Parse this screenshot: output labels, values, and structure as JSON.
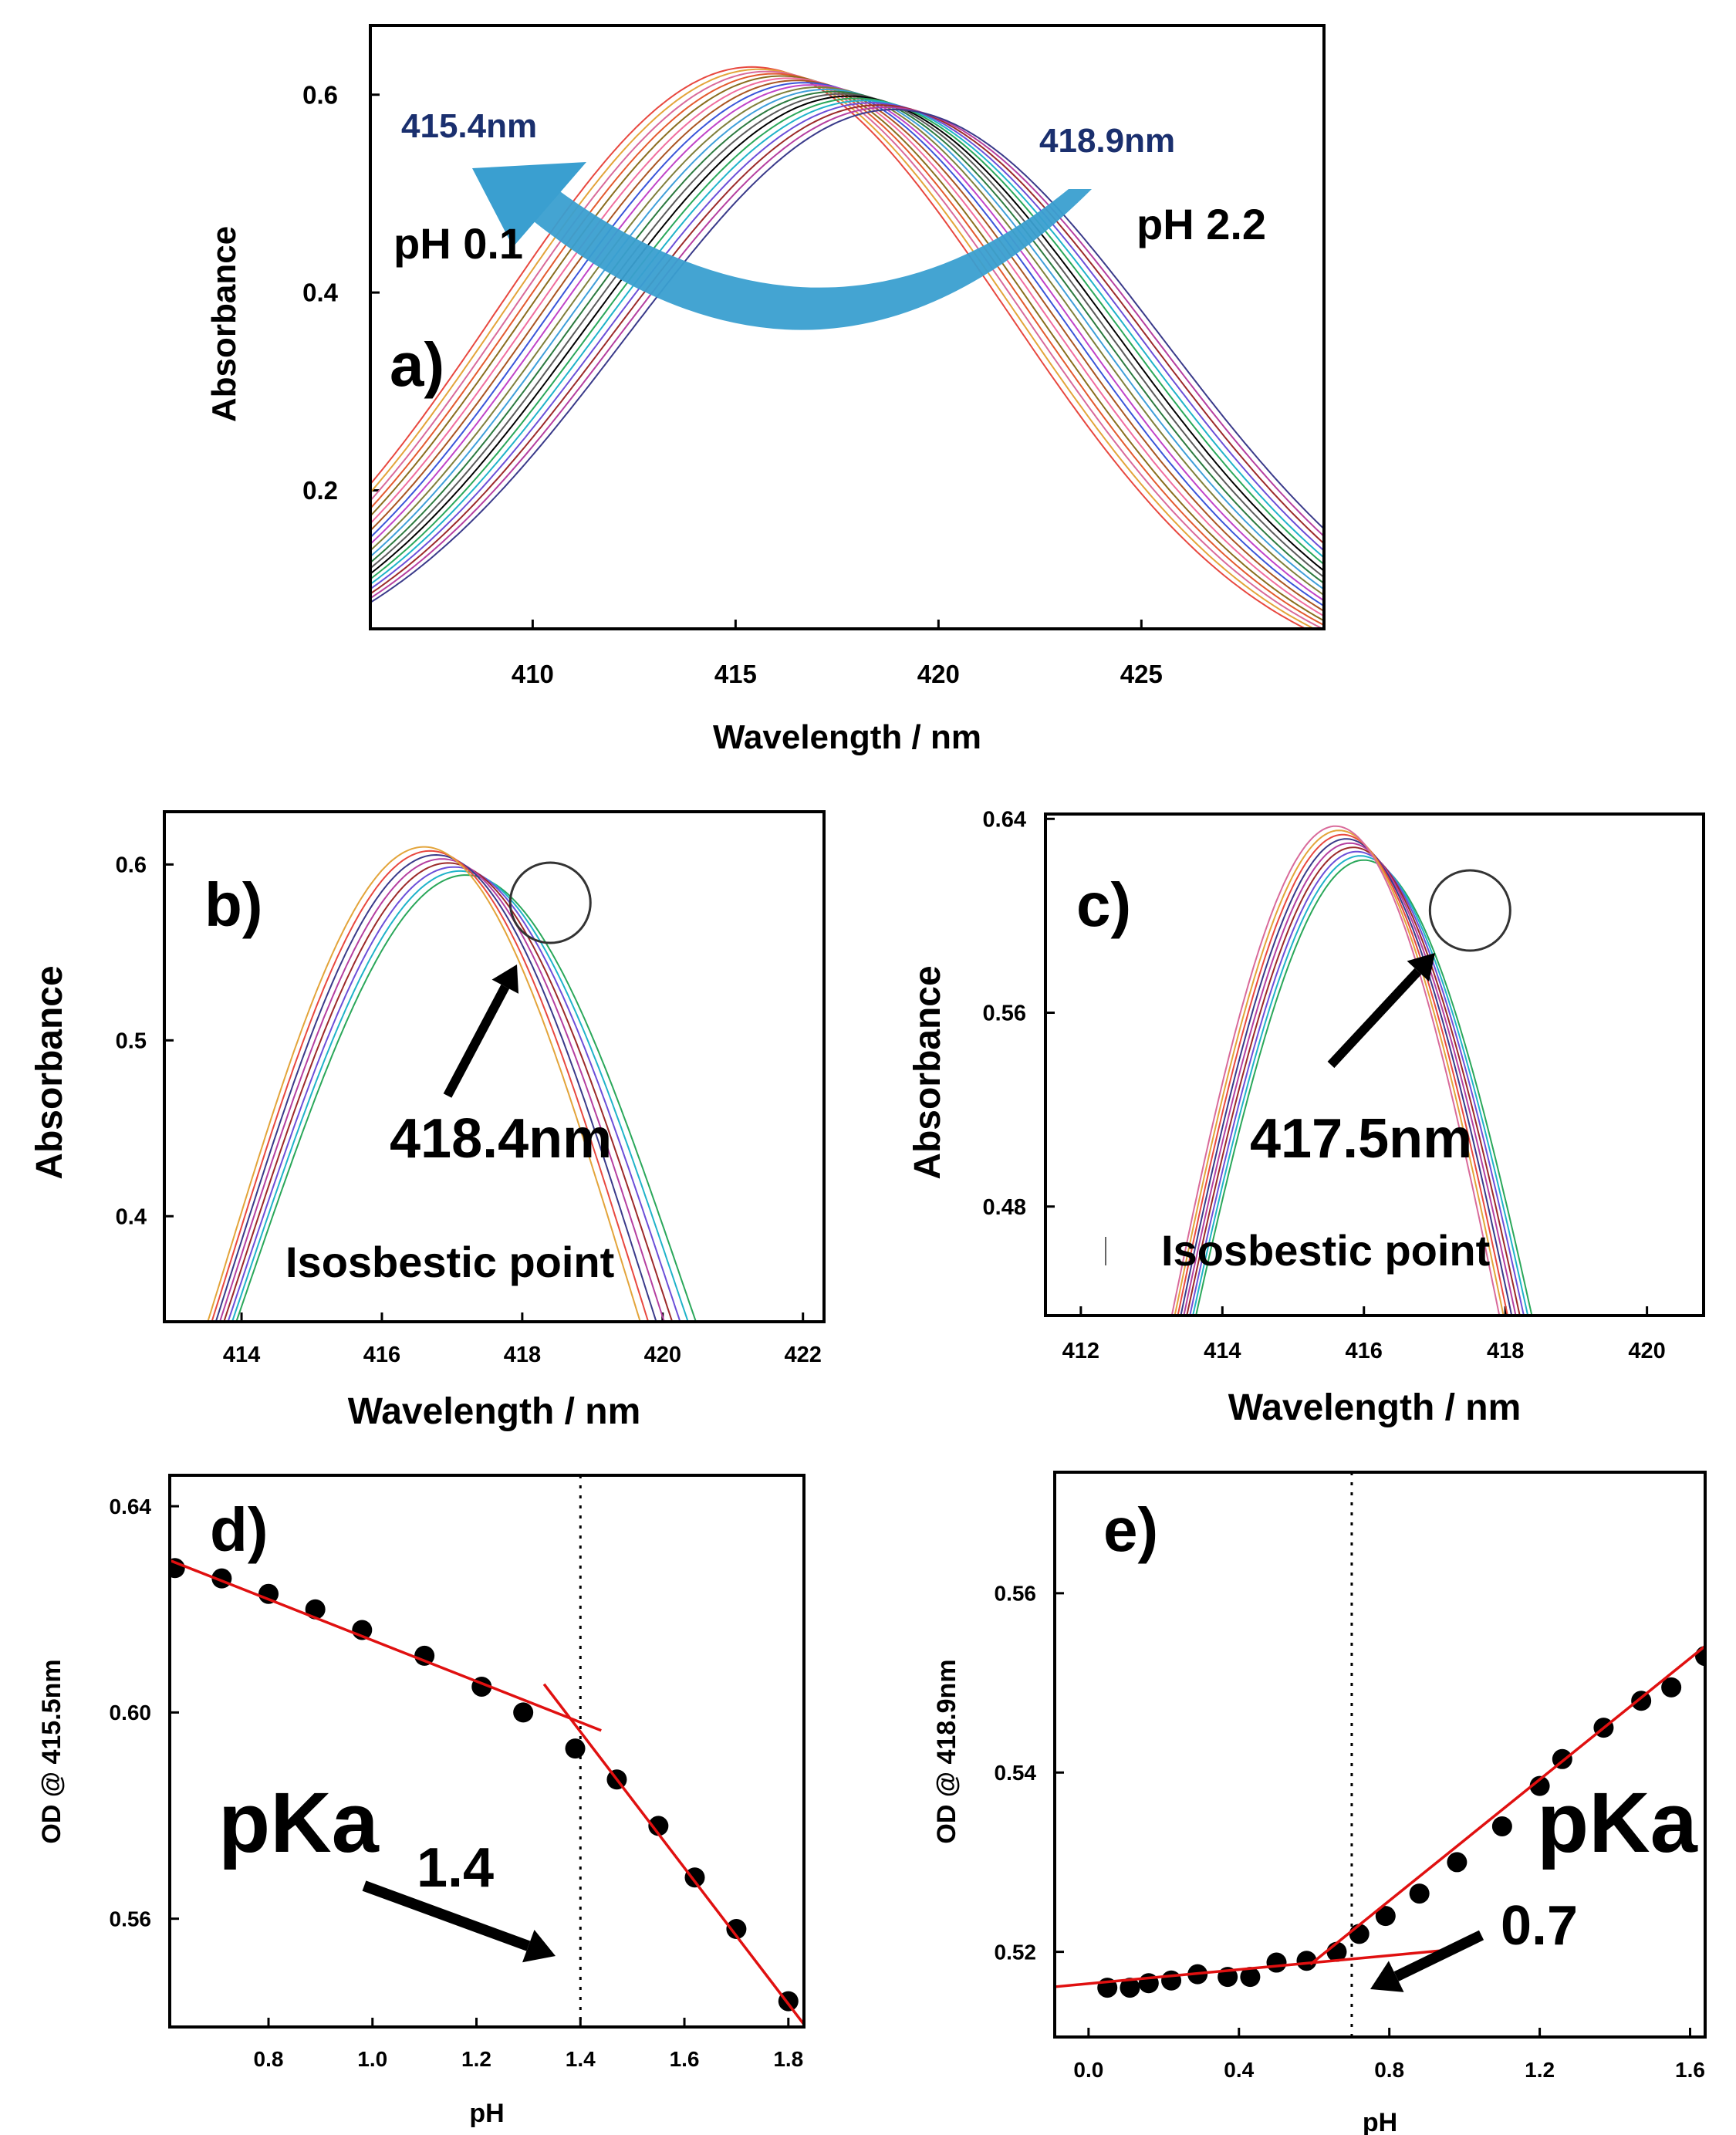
{
  "colors": {
    "frame": "#000000",
    "annotation_navy": "#1a2f6e",
    "arrow_blue": "#3a9fd0",
    "fit_red": "#e01010",
    "palette": [
      "#e8483f",
      "#3a55d9",
      "#2aa75a",
      "#e3a43a",
      "#c044c8",
      "#1fb3c9",
      "#d96a9a",
      "#7f7f3a",
      "#6b4fd8",
      "#e35a2f",
      "#3f9fd9",
      "#9c2a2a",
      "#8a6d1e",
      "#2c7a3f",
      "#b53fa0",
      "#f06d9e",
      "#5a5a5a",
      "#3a3a8a",
      "#aa5522",
      "#000000"
    ]
  },
  "chart_data": [
    {
      "id": "a",
      "type": "line",
      "panel_label": "a)",
      "xlabel": "Wavelength / nm",
      "ylabel": "Absorbance",
      "xlim": [
        406,
        429.5
      ],
      "ylim": [
        0.06,
        0.67
      ],
      "xticks": [
        410,
        415,
        420,
        425
      ],
      "yticks": [
        0.2,
        0.4,
        0.6
      ],
      "ytick_labels": [
        "0.2",
        "0.4",
        "0.6"
      ],
      "series_params": {
        "count": 20,
        "peak_start": 415.4,
        "peak_end": 418.9,
        "amp_start": 0.628,
        "amp_end": 0.585,
        "width_start": 6.3,
        "width_end": 6.6
      },
      "annotations": [
        {
          "text": "415.4nm",
          "role": "peak_left",
          "color": "navy"
        },
        {
          "text": "418.9nm",
          "role": "peak_right",
          "color": "navy"
        },
        {
          "text": "pH 0.1",
          "role": "ph_left"
        },
        {
          "text": "pH 2.2",
          "role": "ph_right"
        }
      ]
    },
    {
      "id": "b",
      "type": "line",
      "panel_label": "b)",
      "xlabel": "Wavelength / nm",
      "ylabel": "Absorbance",
      "xlim": [
        412.9,
        422.3
      ],
      "ylim": [
        0.34,
        0.63
      ],
      "xticks": [
        414,
        416,
        418,
        420,
        422
      ],
      "yticks": [
        0.4,
        0.5,
        0.6
      ],
      "ytick_labels": [
        "0.4",
        "0.5",
        "0.6"
      ],
      "series_params": {
        "count": 8,
        "peak_start": 417.2,
        "peak_end": 416.6,
        "amp_start": 0.594,
        "amp_end": 0.61,
        "width_start": 3.1,
        "width_end": 2.85
      },
      "isosbestic": {
        "x": 418.4,
        "label": "418.4nm",
        "caption": "Isosbestic point"
      }
    },
    {
      "id": "c",
      "type": "line",
      "panel_label": "c)",
      "xlabel": "Wavelength / nm",
      "ylabel": "Absorbance",
      "xlim": [
        411.5,
        420.8
      ],
      "ylim": [
        0.435,
        0.642
      ],
      "xticks": [
        412,
        414,
        416,
        418,
        420
      ],
      "yticks": [
        0.48,
        0.56,
        0.64
      ],
      "ytick_labels": [
        "0.48",
        "0.56",
        "0.64"
      ],
      "series_params": {
        "count": 9,
        "peak_start": 416.0,
        "peak_end": 415.6,
        "amp_start": 0.623,
        "amp_end": 0.637,
        "width_start": 2.8,
        "width_end": 2.65
      },
      "isosbestic": {
        "x": 417.5,
        "label": "417.5nm",
        "caption": "Isosbestic point"
      }
    },
    {
      "id": "d",
      "type": "scatter",
      "panel_label": "d)",
      "xlabel": "pH",
      "ylabel": "OD @ 415.5nm",
      "xlim": [
        0.61,
        1.83
      ],
      "ylim": [
        0.539,
        0.646
      ],
      "xticks": [
        0.8,
        1.0,
        1.2,
        1.4,
        1.6,
        1.8
      ],
      "xtick_labels": [
        "0.8",
        "1.0",
        "1.2",
        "1.4",
        "1.6",
        "1.8"
      ],
      "yticks": [
        0.56,
        0.6,
        0.64
      ],
      "ytick_labels": [
        "0.56",
        "0.60",
        "0.64"
      ],
      "x": [
        0.62,
        0.71,
        0.8,
        0.89,
        0.98,
        1.1,
        1.21,
        1.29,
        1.39,
        1.47,
        1.55,
        1.62,
        1.7,
        1.8
      ],
      "y": [
        0.628,
        0.626,
        0.623,
        0.62,
        0.616,
        0.611,
        0.605,
        0.6,
        0.593,
        0.587,
        0.578,
        0.568,
        0.558,
        0.544
      ],
      "fit_lines": [
        {
          "x": [
            0.61,
            1.44
          ],
          "y": [
            0.6295,
            0.5965
          ]
        },
        {
          "x": [
            1.33,
            1.83
          ],
          "y": [
            0.6055,
            0.5395
          ]
        }
      ],
      "vline_x": 1.4,
      "pka_label": "pKa",
      "pka_value": "1.4"
    },
    {
      "id": "e",
      "type": "scatter",
      "panel_label": "e)",
      "xlabel": "pH",
      "ylabel": "OD @ 418.9nm",
      "xlim": [
        -0.09,
        1.64
      ],
      "ylim": [
        0.5105,
        0.5735
      ],
      "xticks": [
        0.0,
        0.4,
        0.8,
        1.2,
        1.6
      ],
      "xtick_labels": [
        "0.0",
        "0.4",
        "0.8",
        "1.2",
        "1.6"
      ],
      "yticks": [
        0.52,
        0.54,
        0.56
      ],
      "ytick_labels": [
        "0.52",
        "0.54",
        "0.56"
      ],
      "x": [
        0.05,
        0.11,
        0.16,
        0.22,
        0.29,
        0.37,
        0.43,
        0.5,
        0.58,
        0.66,
        0.72,
        0.79,
        0.88,
        0.98,
        1.1,
        1.2,
        1.26,
        1.37,
        1.47,
        1.55,
        1.64
      ],
      "y": [
        0.516,
        0.516,
        0.5165,
        0.5168,
        0.5175,
        0.5172,
        0.5172,
        0.5188,
        0.519,
        0.52,
        0.522,
        0.524,
        0.5265,
        0.53,
        0.534,
        0.5385,
        0.5415,
        0.545,
        0.548,
        0.5495,
        0.553
      ],
      "fit_lines": [
        {
          "x": [
            -0.09,
            0.98
          ],
          "y": [
            0.5161,
            0.5203
          ]
        },
        {
          "x": [
            0.59,
            1.64
          ],
          "y": [
            0.5186,
            0.5541
          ]
        }
      ],
      "vline_x": 0.7,
      "pka_label": "pKa",
      "pka_value": "0.7"
    }
  ]
}
